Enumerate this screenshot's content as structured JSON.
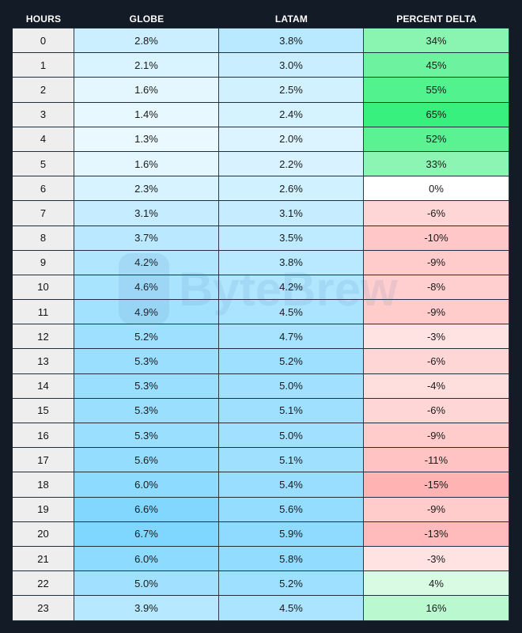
{
  "chart_data": {
    "type": "table",
    "columns": [
      "HOURS",
      "GLOBE",
      "LATAM",
      "PERCENT DELTA"
    ],
    "rows": [
      {
        "hour": "0",
        "globe": 2.8,
        "latam": 3.8,
        "delta": 34
      },
      {
        "hour": "1",
        "globe": 2.1,
        "latam": 3.0,
        "delta": 45
      },
      {
        "hour": "2",
        "globe": 1.6,
        "latam": 2.5,
        "delta": 55
      },
      {
        "hour": "3",
        "globe": 1.4,
        "latam": 2.4,
        "delta": 65
      },
      {
        "hour": "4",
        "globe": 1.3,
        "latam": 2.0,
        "delta": 52
      },
      {
        "hour": "5",
        "globe": 1.6,
        "latam": 2.2,
        "delta": 33
      },
      {
        "hour": "6",
        "globe": 2.3,
        "latam": 2.6,
        "delta": 0
      },
      {
        "hour": "7",
        "globe": 3.1,
        "latam": 3.1,
        "delta": -6
      },
      {
        "hour": "8",
        "globe": 3.7,
        "latam": 3.5,
        "delta": -10
      },
      {
        "hour": "9",
        "globe": 4.2,
        "latam": 3.8,
        "delta": -9
      },
      {
        "hour": "10",
        "globe": 4.6,
        "latam": 4.2,
        "delta": -8
      },
      {
        "hour": "11",
        "globe": 4.9,
        "latam": 4.5,
        "delta": -9
      },
      {
        "hour": "12",
        "globe": 5.2,
        "latam": 4.7,
        "delta": -3
      },
      {
        "hour": "13",
        "globe": 5.3,
        "latam": 5.2,
        "delta": -6
      },
      {
        "hour": "14",
        "globe": 5.3,
        "latam": 5.0,
        "delta": -4
      },
      {
        "hour": "15",
        "globe": 5.3,
        "latam": 5.1,
        "delta": -6
      },
      {
        "hour": "16",
        "globe": 5.3,
        "latam": 5.0,
        "delta": -9
      },
      {
        "hour": "17",
        "globe": 5.6,
        "latam": 5.1,
        "delta": -11
      },
      {
        "hour": "18",
        "globe": 6.0,
        "latam": 5.4,
        "delta": -15
      },
      {
        "hour": "19",
        "globe": 6.6,
        "latam": 5.6,
        "delta": -9
      },
      {
        "hour": "20",
        "globe": 6.7,
        "latam": 5.9,
        "delta": -13
      },
      {
        "hour": "21",
        "globe": 6.0,
        "latam": 5.8,
        "delta": -3
      },
      {
        "hour": "22",
        "globe": 5.0,
        "latam": 5.2,
        "delta": 4
      },
      {
        "hour": "23",
        "globe": 3.9,
        "latam": 4.5,
        "delta": 16
      }
    ],
    "value_suffix": "%",
    "colors": {
      "page_background": "#131b26",
      "hour_cell": "#eeeeee",
      "blue_low": "#eaf9ff",
      "blue_high": "#7fd6ff",
      "green_low": "#e4fbea",
      "green_high": "#38f07d",
      "red_low": "#ffeeee",
      "red_high": "#ffb3b3",
      "zero": "#ffffff"
    }
  },
  "watermark": {
    "text": "ByteBrew"
  }
}
